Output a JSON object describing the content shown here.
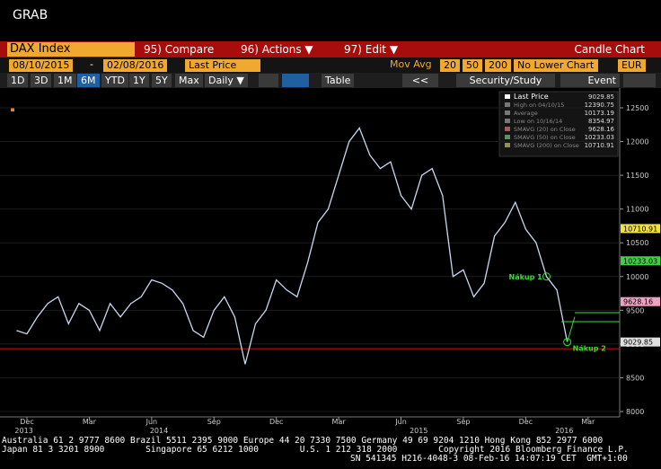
{
  "header": {
    "title": "GRAB"
  },
  "toolbar": {
    "security": "DAX Index",
    "buttons": [
      "95) Compare",
      "96) Actions ▼",
      "97) Edit ▼"
    ],
    "chart_kind": "Candle Chart",
    "start_date": "08/10/2015",
    "date_separator": "-",
    "end_date": "02/08/2016",
    "field": "Last Price",
    "mov_avg_label": "Mov Avg",
    "mov_avg_periods": [
      "20",
      "50",
      "200"
    ],
    "lower_chart": "No Lower Chart",
    "currency": "EUR",
    "ranges": [
      "1D",
      "3D",
      "1M",
      "6M",
      "YTD",
      "1Y",
      "5Y",
      "Max"
    ],
    "frequency": "Daily ▼",
    "table": "Table",
    "back": "<<",
    "study": "Security/Study",
    "event": "Event"
  },
  "chart_data": {
    "type": "line",
    "categories": [
      null,
      "Dec",
      null,
      null,
      null,
      null,
      null,
      "Mar",
      null,
      null,
      null,
      null,
      null,
      "Jun",
      null,
      null,
      null,
      null,
      null,
      "Sep",
      null,
      null,
      null,
      null,
      null,
      "Dec",
      null,
      null,
      null,
      null,
      null,
      "Mar",
      null,
      null,
      null,
      null,
      null,
      "Jun",
      null,
      null,
      null,
      null,
      null,
      "Sep",
      null,
      null,
      null,
      null,
      null,
      "Dec",
      null,
      null,
      null,
      null,
      null,
      "Mar"
    ],
    "year_labels": [
      "2013",
      null,
      null,
      null,
      null,
      null,
      null,
      null,
      null,
      null,
      null,
      null,
      null,
      "2014",
      null,
      null,
      null,
      null,
      null,
      null,
      null,
      null,
      null,
      null,
      null,
      null,
      null,
      null,
      null,
      null,
      null,
      null,
      null,
      null,
      null,
      null,
      null,
      null,
      "2015",
      null,
      null,
      null,
      null,
      null,
      null,
      null,
      null,
      null,
      null,
      null,
      null,
      null,
      "2016",
      null,
      null,
      null
    ],
    "series": [
      {
        "name": "Last Price",
        "color": "#c8d8f0",
        "values": [
          9200,
          9150,
          9400,
          9600,
          9700,
          9300,
          9600,
          9500,
          9200,
          9600,
          9400,
          9600,
          9700,
          9950,
          9900,
          9800,
          9600,
          9200,
          9100,
          9500,
          9700,
          9400,
          8700,
          9300,
          9500,
          9950,
          9800,
          9700,
          10200,
          10800,
          11000,
          11500,
          12000,
          12200,
          11800,
          11600,
          11700,
          11200,
          11000,
          11500,
          11600,
          11200,
          10000,
          10100,
          9700,
          9900,
          10600,
          10800,
          11100,
          10700,
          10500,
          10000,
          9800,
          9030,
          null,
          null
        ]
      }
    ],
    "ylim": [
      8000,
      12500
    ],
    "yticks": [
      8000,
      8500,
      9000,
      9500,
      10000,
      10500,
      11000,
      11500,
      12000,
      12500
    ],
    "hline": {
      "value": 8930,
      "color": "#d01010"
    },
    "price_flags": [
      {
        "value": 10710.91,
        "color": "#f0e040"
      },
      {
        "value": 10233.03,
        "color": "#40d040"
      },
      {
        "value": 9628.16,
        "color": "#f0a0c0"
      },
      {
        "value": 9029.85,
        "color": "#e0e0e0"
      }
    ],
    "annotations": [
      {
        "text": "Nákup 1",
        "index": 51
      },
      {
        "text": "Nákup 2",
        "index": 53
      }
    ],
    "legend": [
      {
        "label": "Last Price",
        "value": 9029.85
      },
      {
        "label": "High on 04/10/15",
        "value": 12390.75
      },
      {
        "label": "Average",
        "value": 10173.19
      },
      {
        "label": "Low on 10/16/14",
        "value": 8354.97
      },
      {
        "label": "SMAVG (20) on Close",
        "value": 9628.16
      },
      {
        "label": "SMAVG (50) on Close",
        "value": 10233.03
      },
      {
        "label": "SMAVG (200) on Close",
        "value": 10710.91
      }
    ]
  },
  "footer": {
    "lines": [
      "Australia 61 2 9777 8600 Brazil 5511 2395 9000 Europe 44 20 7330 7500 Germany 49 69 9204 1210 Hong Kong 852 2977 6000",
      "Japan 81 3 3201 8900        Singapore 65 6212 1000        U.S. 1 212 318 2000        Copyright 2016 Bloomberg Finance L.P.",
      "SN 541345 H216-4048-3 08-Feb-16 14:07:19 CET  GMT+1:00"
    ]
  }
}
